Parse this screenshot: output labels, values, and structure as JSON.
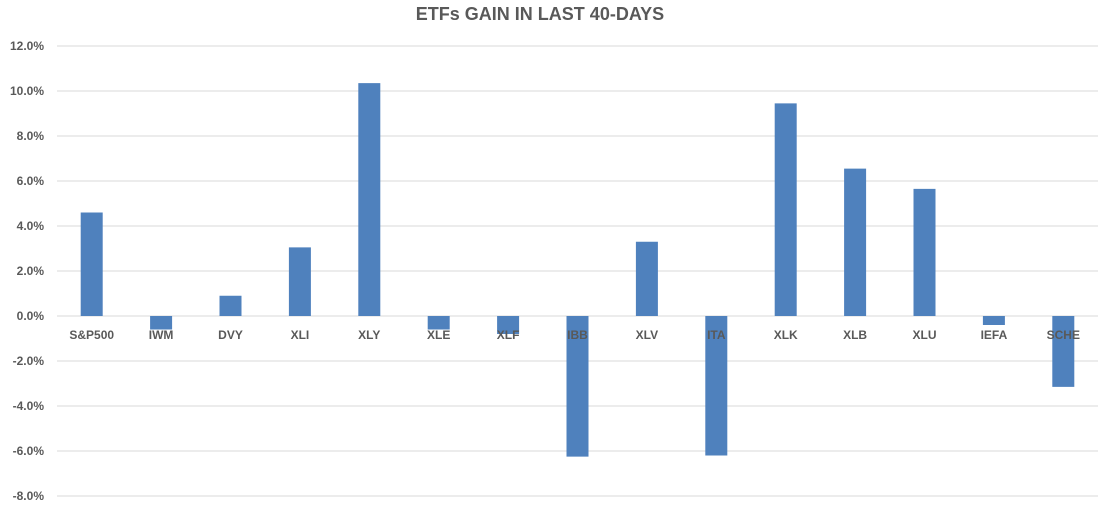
{
  "chart_data": {
    "type": "bar",
    "title": "ETFs GAIN IN LAST 40-DAYS",
    "xlabel": "",
    "ylabel": "",
    "categories": [
      "S&P500",
      "IWM",
      "DVY",
      "XLI",
      "XLY",
      "XLE",
      "XLF",
      "IBB",
      "XLV",
      "ITA",
      "XLK",
      "XLB",
      "XLU",
      "IEFA",
      "SCHE"
    ],
    "values": [
      4.6,
      -0.6,
      0.9,
      3.05,
      10.35,
      -0.6,
      -0.8,
      -6.25,
      3.3,
      -6.2,
      9.45,
      6.55,
      5.65,
      -0.4,
      -3.15
    ],
    "ylim": [
      -8,
      12
    ],
    "yticks": [
      "12.0%",
      "10.0%",
      "8.0%",
      "6.0%",
      "4.0%",
      "2.0%",
      "0.0%",
      "-2.0%",
      "-4.0%",
      "-6.0%",
      "-8.0%"
    ],
    "grid": true,
    "legend": "none",
    "bar_color": "#4f81bd"
  }
}
